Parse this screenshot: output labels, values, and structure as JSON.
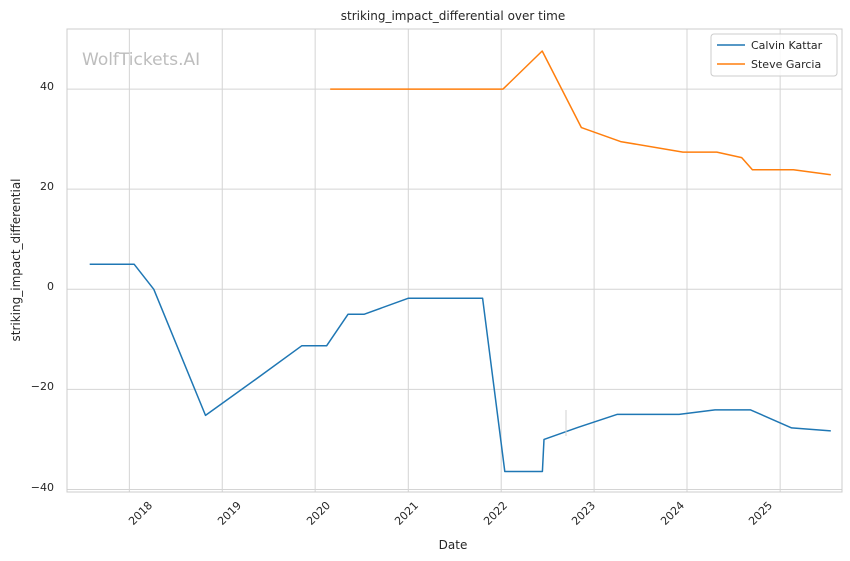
{
  "colors": {
    "calvin": "#1f77b4",
    "steve": "#ff7f0e",
    "grid": "#d4d4d4",
    "frame": "#cccccc"
  },
  "watermark": "WolfTickets.AI",
  "chart_data": {
    "type": "line",
    "title": "striking_impact_differential over time",
    "xlabel": "Date",
    "ylabel": "striking_impact_differential",
    "x_ticks": [
      "2018",
      "2019",
      "2020",
      "2021",
      "2022",
      "2023",
      "2024",
      "2025"
    ],
    "y_ticks": [
      "40",
      "20",
      "0",
      "−20",
      "−40"
    ],
    "xlim": [
      "2017-05-01",
      "2025-09-01"
    ],
    "ylim": [
      -40.5,
      52
    ],
    "grid": true,
    "legend": "top-right",
    "series": [
      {
        "name": "Calvin Kattar",
        "color": "#1f77b4",
        "points": [
          [
            "2017-07-29",
            5.0
          ],
          [
            "2018-01-20",
            5.0
          ],
          [
            "2018-04-07",
            0.0
          ],
          [
            "2018-10-27",
            -25.2
          ],
          [
            "2019-06-08",
            -17.0
          ],
          [
            "2019-11-09",
            -11.3
          ],
          [
            "2020-02-15",
            -11.3
          ],
          [
            "2020-05-09",
            -5.0
          ],
          [
            "2020-07-11",
            -5.0
          ],
          [
            "2020-12-31",
            -1.8
          ],
          [
            "2021-10-20",
            -1.8
          ],
          [
            "2022-01-15",
            -36.4
          ],
          [
            "2022-06-12",
            -36.4
          ],
          [
            "2022-06-18",
            -30.0
          ],
          [
            "2022-10-29",
            -27.6
          ],
          [
            "2023-04-01",
            -25.0
          ],
          [
            "2023-12-01",
            -25.0
          ],
          [
            "2024-04-20",
            -24.1
          ],
          [
            "2024-09-07",
            -24.1
          ],
          [
            "2025-02-15",
            -27.7
          ],
          [
            "2025-07-19",
            -28.3
          ]
        ]
      },
      {
        "name": "Steve Garcia",
        "color": "#ff7f0e",
        "points": [
          [
            "2020-02-29",
            40.0
          ],
          [
            "2022-01-08",
            40.0
          ],
          [
            "2022-06-11",
            47.6
          ],
          [
            "2022-11-12",
            32.3
          ],
          [
            "2023-04-15",
            29.5
          ],
          [
            "2023-12-16",
            27.4
          ],
          [
            "2024-04-27",
            27.4
          ],
          [
            "2024-08-03",
            26.3
          ],
          [
            "2024-09-14",
            23.9
          ],
          [
            "2025-02-22",
            23.9
          ],
          [
            "2025-07-19",
            22.9
          ]
        ]
      }
    ]
  }
}
